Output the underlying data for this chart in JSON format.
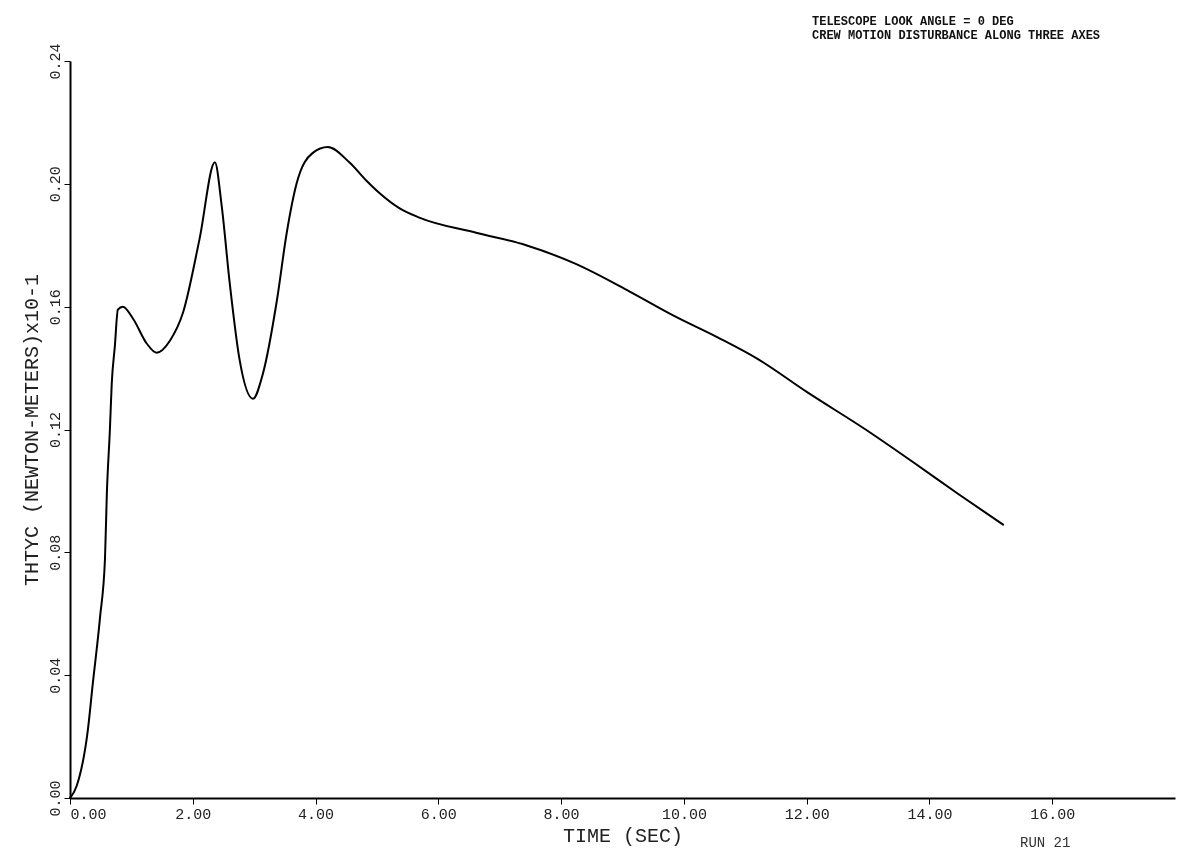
{
  "chart_data": {
    "type": "line",
    "xlabel": "TIME (SEC)",
    "ylabel": "THTYC  (NEWTON-METERS)x10-1",
    "annotations": [
      "TELESCOPE LOOK ANGLE = 0 DEG",
      "CREW MOTION DISTURBANCE ALONG THREE AXES",
      "RUN 21"
    ],
    "x": [
      0,
      0.11,
      0.29,
      0.37,
      0.49,
      0.57,
      0.6,
      0.65,
      0.68,
      0.73,
      0.78,
      0.86,
      1.03,
      1.25,
      1.41,
      1.63,
      1.84,
      2.11,
      2.36,
      2.47,
      2.6,
      2.76,
      2.98,
      3.14,
      3.37,
      3.53,
      3.69,
      3.95,
      4.2,
      4.55,
      4.83,
      5.04,
      5.37,
      5.69,
      6.63,
      7.43,
      8.23,
      9.11,
      9.84,
      10.55,
      11.2,
      12.02,
      12.96,
      13.76,
      14.47,
      15.2
    ],
    "series": [
      {
        "color": "#000000",
        "values": [
          0,
          0.004,
          0.022,
          0.037,
          0.059,
          0.078,
          0.099,
          0.12,
          0.135,
          0.147,
          0.159,
          0.16,
          0.156,
          0.148,
          0.145,
          0.149,
          0.158,
          0.182,
          0.207,
          0.193,
          0.168,
          0.143,
          0.13,
          0.138,
          0.162,
          0.184,
          0.2,
          0.21,
          0.212,
          0.207,
          0.201,
          0.197,
          0.192,
          0.189,
          0.184,
          0.18,
          0.174,
          0.165,
          0.157,
          0.15,
          0.143,
          0.132,
          0.12,
          0.109,
          0.099,
          0.089
        ]
      }
    ],
    "xlim": [
      0,
      18
    ],
    "xticks": [
      {
        "value": 0,
        "label": "0.00"
      },
      {
        "value": 2,
        "label": "2.00"
      },
      {
        "value": 4,
        "label": "4.00"
      },
      {
        "value": 6,
        "label": "6.00"
      },
      {
        "value": 8,
        "label": "8.00"
      },
      {
        "value": 10,
        "label": "10.00"
      },
      {
        "value": 12,
        "label": "12.00"
      },
      {
        "value": 14,
        "label": "14.00"
      },
      {
        "value": 16,
        "label": "16.00"
      }
    ],
    "ylim": [
      0,
      0.24
    ],
    "yticks": [
      {
        "value": 0,
        "label": "0.00"
      },
      {
        "value": 0.04,
        "label": "0.04"
      },
      {
        "value": 0.08,
        "label": "0.08"
      },
      {
        "value": 0.12,
        "label": "0.12"
      },
      {
        "value": 0.16,
        "label": "0.16"
      },
      {
        "value": 0.2,
        "label": "0.20"
      },
      {
        "value": 0.24,
        "label": "0.24"
      }
    ],
    "grid": false,
    "marker": "none",
    "line_style": "solid"
  }
}
